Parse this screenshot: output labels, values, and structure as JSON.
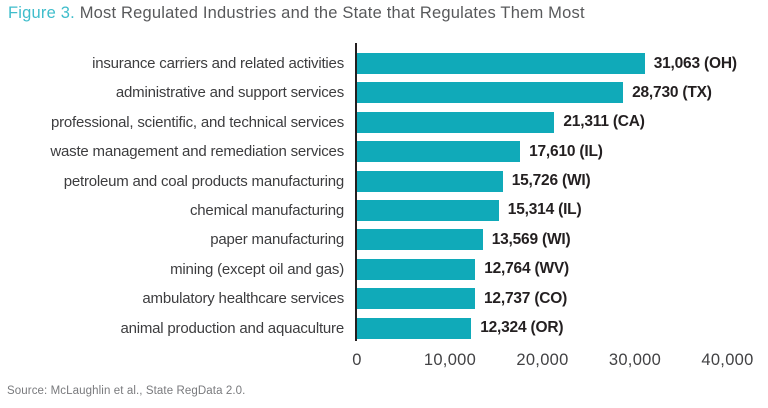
{
  "header": {
    "figure_label": "Figure 3.",
    "title": "Most Regulated Industries and the State that Regulates Them Most"
  },
  "chart_data": {
    "type": "bar",
    "orientation": "horizontal",
    "title": "Figure 3. Most Regulated Industries and the State that Regulates Them Most",
    "categories": [
      "insurance carriers and related activities",
      "administrative and support services",
      "professional, scientific, and technical services",
      "waste management and remediation services",
      "petroleum and coal products manufacturing",
      "chemical manufacturing",
      "paper manufacturing",
      "mining (except oil and gas)",
      "ambulatory healthcare services",
      "animal production and aquaculture"
    ],
    "values": [
      31063,
      28730,
      21311,
      17610,
      15726,
      15314,
      13569,
      12764,
      12737,
      12324
    ],
    "states": [
      "OH",
      "TX",
      "CA",
      "IL",
      "WI",
      "IL",
      "WI",
      "WV",
      "CO",
      "OR"
    ],
    "value_labels": [
      "31,063 (OH)",
      "28,730 (TX)",
      "21,311 (CA)",
      "17,610 (IL)",
      "15,726 (WI)",
      "15,314 (IL)",
      "13,569 (WI)",
      "12,764 (WV)",
      "12,737 (CO)",
      "12,324 (OR)"
    ],
    "xlabel": "",
    "ylabel": "",
    "xlim": [
      0,
      40000
    ],
    "x_ticks": [
      "0",
      "10,000",
      "20,000",
      "30,000",
      "40,000"
    ],
    "grid": false,
    "legend": false,
    "bar_color": "#10aab9"
  },
  "colors": {
    "bar": "#10aab9",
    "figure_label": "#3fbdcb",
    "title_text": "#58595b",
    "value_text": "#231f20",
    "axis_line": "#231f20"
  },
  "footer": {
    "source": "Source: McLaughlin et al., State RegData 2.0."
  }
}
